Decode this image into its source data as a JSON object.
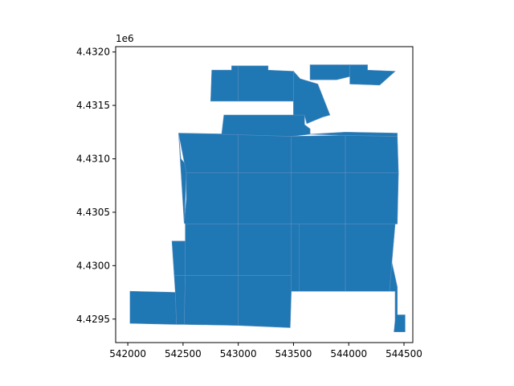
{
  "chart_data": {
    "type": "map",
    "offset_text": "1e6",
    "x_ticks": [
      {
        "value": 542000,
        "label": "542000"
      },
      {
        "value": 542500,
        "label": "542500"
      },
      {
        "value": 543000,
        "label": "543000"
      },
      {
        "value": 543500,
        "label": "543500"
      },
      {
        "value": 544000,
        "label": "544000"
      },
      {
        "value": 544500,
        "label": "544500"
      }
    ],
    "y_ticks": [
      {
        "value": 4429500,
        "label": "4.4295"
      },
      {
        "value": 4430000,
        "label": "4.4300"
      },
      {
        "value": 4430500,
        "label": "4.4305"
      },
      {
        "value": 4431000,
        "label": "4.4310"
      },
      {
        "value": 4431500,
        "label": "4.4315"
      },
      {
        "value": 4432000,
        "label": "4.4320"
      }
    ],
    "xlim": [
      541890,
      544580
    ],
    "ylim": [
      4429280,
      4432050
    ],
    "fill_color": "#1f77b4",
    "edge_color": "#5b8fbf",
    "polygons": [
      [
        [
          542020,
          4429460
        ],
        [
          542020,
          4429760
        ],
        [
          542430,
          4429750
        ],
        [
          542440,
          4429450
        ]
      ],
      [
        [
          542440,
          4429450
        ],
        [
          542430,
          4429750
        ],
        [
          542420,
          4429910
        ],
        [
          542520,
          4429910
        ],
        [
          542510,
          4429450
        ]
      ],
      [
        [
          542510,
          4429450
        ],
        [
          542520,
          4429910
        ],
        [
          543000,
          4429910
        ],
        [
          543000,
          4429440
        ]
      ],
      [
        [
          543000,
          4429440
        ],
        [
          543000,
          4429910
        ],
        [
          543480,
          4429910
        ],
        [
          543480,
          4429760
        ],
        [
          543470,
          4429420
        ]
      ],
      [
        [
          542400,
          4430230
        ],
        [
          542420,
          4429910
        ],
        [
          542520,
          4429910
        ],
        [
          542520,
          4430230
        ]
      ],
      [
        [
          542520,
          4430230
        ],
        [
          542520,
          4429910
        ],
        [
          543000,
          4429910
        ],
        [
          543000,
          4430390
        ],
        [
          542520,
          4430390
        ]
      ],
      [
        [
          543000,
          4430390
        ],
        [
          543000,
          4429910
        ],
        [
          543480,
          4429910
        ],
        [
          543480,
          4430390
        ]
      ],
      [
        [
          543480,
          4430390
        ],
        [
          543480,
          4429760
        ],
        [
          543550,
          4429760
        ],
        [
          543550,
          4430390
        ]
      ],
      [
        [
          543550,
          4430390
        ],
        [
          543550,
          4429760
        ],
        [
          543970,
          4429760
        ],
        [
          543970,
          4430390
        ]
      ],
      [
        [
          543970,
          4430390
        ],
        [
          543970,
          4429760
        ],
        [
          544370,
          4429760
        ],
        [
          544390,
          4430030
        ],
        [
          544420,
          4430390
        ]
      ],
      [
        [
          544370,
          4429760
        ],
        [
          544420,
          4429760
        ],
        [
          544420,
          4429490
        ],
        [
          544410,
          4429380
        ],
        [
          544510,
          4429380
        ],
        [
          544510,
          4429540
        ],
        [
          544440,
          4429540
        ],
        [
          544440,
          4429800
        ],
        [
          544390,
          4430030
        ]
      ],
      [
        [
          542520,
          4430390
        ],
        [
          543000,
          4430390
        ],
        [
          543000,
          4430870
        ],
        [
          542530,
          4430870
        ],
        [
          542530,
          4430620
        ],
        [
          542510,
          4430400
        ]
      ],
      [
        [
          543000,
          4430390
        ],
        [
          543480,
          4430390
        ],
        [
          543480,
          4430870
        ],
        [
          543000,
          4430870
        ]
      ],
      [
        [
          543480,
          4430390
        ],
        [
          543970,
          4430390
        ],
        [
          543970,
          4430870
        ],
        [
          543480,
          4430870
        ]
      ],
      [
        [
          543970,
          4430390
        ],
        [
          544440,
          4430390
        ],
        [
          544450,
          4430870
        ],
        [
          543970,
          4430870
        ]
      ],
      [
        [
          542510,
          4430400
        ],
        [
          542530,
          4430870
        ],
        [
          542580,
          4430880
        ],
        [
          542480,
          4431000
        ],
        [
          542460,
          4431240
        ]
      ],
      [
        [
          542530,
          4430870
        ],
        [
          543000,
          4430870
        ],
        [
          543000,
          4431230
        ],
        [
          542460,
          4431240
        ]
      ],
      [
        [
          543000,
          4430870
        ],
        [
          543480,
          4430870
        ],
        [
          543480,
          4431210
        ],
        [
          543000,
          4431230
        ]
      ],
      [
        [
          543480,
          4430870
        ],
        [
          543970,
          4430870
        ],
        [
          543970,
          4431220
        ],
        [
          543480,
          4431210
        ]
      ],
      [
        [
          543970,
          4430870
        ],
        [
          544450,
          4430870
        ],
        [
          544440,
          4431210
        ],
        [
          543970,
          4431220
        ]
      ],
      [
        [
          542850,
          4431230
        ],
        [
          543480,
          4431210
        ],
        [
          543650,
          4431230
        ],
        [
          543650,
          4431280
        ],
        [
          543600,
          4431320
        ],
        [
          543600,
          4431410
        ],
        [
          542870,
          4431410
        ]
      ],
      [
        [
          543650,
          4431230
        ],
        [
          543970,
          4431220
        ],
        [
          544440,
          4431210
        ],
        [
          544440,
          4431240
        ],
        [
          543970,
          4431250
        ]
      ],
      [
        [
          542750,
          4431540
        ],
        [
          542760,
          4431830
        ],
        [
          542940,
          4431830
        ],
        [
          542940,
          4431870
        ],
        [
          543000,
          4431870
        ],
        [
          543000,
          4431540
        ]
      ],
      [
        [
          543000,
          4431540
        ],
        [
          543000,
          4431870
        ],
        [
          543270,
          4431870
        ],
        [
          543270,
          4431830
        ],
        [
          543500,
          4431820
        ],
        [
          543500,
          4431540
        ]
      ],
      [
        [
          543500,
          4431820
        ],
        [
          543560,
          4431750
        ],
        [
          543720,
          4431700
        ],
        [
          543830,
          4431410
        ],
        [
          543760,
          4431390
        ],
        [
          543620,
          4431330
        ],
        [
          543600,
          4431410
        ],
        [
          543500,
          4431410
        ],
        [
          543500,
          4431540
        ]
      ],
      [
        [
          543650,
          4431880
        ],
        [
          544010,
          4431880
        ],
        [
          544010,
          4431770
        ],
        [
          543890,
          4431740
        ],
        [
          543710,
          4431740
        ],
        [
          543650,
          4431740
        ]
      ],
      [
        [
          544010,
          4431880
        ],
        [
          544170,
          4431880
        ],
        [
          544170,
          4431830
        ],
        [
          544420,
          4431820
        ],
        [
          544280,
          4431690
        ],
        [
          544010,
          4431700
        ]
      ]
    ]
  }
}
